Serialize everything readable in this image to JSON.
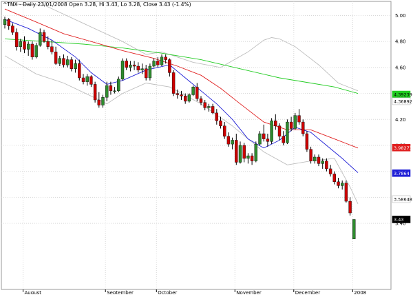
{
  "header": {
    "text": "^TNX - Daily 23/01/2008 Open 3.28, Hi 3.43, Lo 3.28, Close 3.43 (-1.4%)"
  },
  "chart_data": {
    "type": "candlestick",
    "title": "^TNX - Daily 23/01/2008 Open 3.28, Hi 3.43, Lo 3.28, Close 3.43 (-1.4%)",
    "ylim": [
      3.24,
      5.1
    ],
    "y_ticks": [
      "5.00",
      "4.80",
      "4.60",
      "4.40",
      "4.20",
      "4.00",
      "3.80",
      "3.60",
      "3.40"
    ],
    "x_ticks": [
      "August",
      "September",
      "October",
      "November",
      "December",
      "2008"
    ],
    "x_tick_index": [
      5,
      26,
      39,
      59,
      74,
      89
    ],
    "grid": true,
    "colors": {
      "up": "#2e8b2e",
      "down": "#cc0000",
      "ma_fast": "#1f1fd6",
      "ma_mid": "#e02020",
      "ma_slow": "#22cc22",
      "bollinger": "#bdbdbd"
    },
    "ohlc": [
      [
        4.93,
        4.99,
        4.9,
        4.97
      ],
      [
        4.97,
        4.98,
        4.89,
        4.92
      ],
      [
        4.92,
        4.94,
        4.85,
        4.87
      ],
      [
        4.87,
        4.9,
        4.73,
        4.76
      ],
      [
        4.76,
        4.82,
        4.72,
        4.8
      ],
      [
        4.8,
        4.84,
        4.71,
        4.74
      ],
      [
        4.74,
        4.8,
        4.69,
        4.78
      ],
      [
        4.78,
        4.8,
        4.66,
        4.68
      ],
      [
        4.68,
        4.79,
        4.67,
        4.77
      ],
      [
        4.77,
        4.9,
        4.76,
        4.87
      ],
      [
        4.87,
        4.89,
        4.79,
        4.8
      ],
      [
        4.8,
        4.84,
        4.74,
        4.76
      ],
      [
        4.76,
        4.81,
        4.7,
        4.72
      ],
      [
        4.72,
        4.76,
        4.62,
        4.63
      ],
      [
        4.63,
        4.69,
        4.61,
        4.67
      ],
      [
        4.67,
        4.7,
        4.6,
        4.62
      ],
      [
        4.62,
        4.69,
        4.6,
        4.66
      ],
      [
        4.66,
        4.68,
        4.57,
        4.59
      ],
      [
        4.59,
        4.66,
        4.56,
        4.63
      ],
      [
        4.63,
        4.66,
        4.5,
        4.52
      ],
      [
        4.52,
        4.55,
        4.47,
        4.49
      ],
      [
        4.49,
        4.55,
        4.46,
        4.53
      ],
      [
        4.53,
        4.54,
        4.45,
        4.47
      ],
      [
        4.47,
        4.49,
        4.33,
        4.35
      ],
      [
        4.35,
        4.41,
        4.29,
        4.31
      ],
      [
        4.31,
        4.39,
        4.29,
        4.37
      ],
      [
        4.37,
        4.49,
        4.34,
        4.46
      ],
      [
        4.46,
        4.49,
        4.39,
        4.42
      ],
      [
        4.42,
        4.45,
        4.4,
        4.42
      ],
      [
        4.42,
        4.53,
        4.41,
        4.51
      ],
      [
        4.51,
        4.67,
        4.5,
        4.65
      ],
      [
        4.65,
        4.67,
        4.58,
        4.6
      ],
      [
        4.6,
        4.65,
        4.57,
        4.62
      ],
      [
        4.62,
        4.65,
        4.58,
        4.61
      ],
      [
        4.61,
        4.64,
        4.56,
        4.58
      ],
      [
        4.58,
        4.63,
        4.55,
        4.59
      ],
      [
        4.59,
        4.62,
        4.5,
        4.52
      ],
      [
        4.52,
        4.63,
        4.5,
        4.61
      ],
      [
        4.61,
        4.67,
        4.6,
        4.65
      ],
      [
        4.65,
        4.68,
        4.6,
        4.62
      ],
      [
        4.62,
        4.7,
        4.61,
        4.68
      ],
      [
        4.68,
        4.7,
        4.63,
        4.66
      ],
      [
        4.66,
        4.67,
        4.53,
        4.56
      ],
      [
        4.56,
        4.58,
        4.38,
        4.4
      ],
      [
        4.4,
        4.43,
        4.36,
        4.39
      ],
      [
        4.39,
        4.42,
        4.35,
        4.38
      ],
      [
        4.38,
        4.4,
        4.32,
        4.34
      ],
      [
        4.34,
        4.4,
        4.33,
        4.39
      ],
      [
        4.39,
        4.46,
        4.38,
        4.45
      ],
      [
        4.45,
        4.48,
        4.34,
        4.36
      ],
      [
        4.36,
        4.38,
        4.31,
        4.33
      ],
      [
        4.33,
        4.35,
        4.27,
        4.29
      ],
      [
        4.29,
        4.32,
        4.26,
        4.3
      ],
      [
        4.3,
        4.32,
        4.24,
        4.25
      ],
      [
        4.25,
        4.28,
        4.16,
        4.19
      ],
      [
        4.19,
        4.22,
        4.13,
        4.15
      ],
      [
        4.15,
        4.18,
        4.05,
        4.07
      ],
      [
        4.07,
        4.1,
        3.99,
        4.01
      ],
      [
        4.01,
        4.06,
        3.97,
        4.04
      ],
      [
        4.04,
        4.09,
        3.85,
        3.87
      ],
      [
        3.87,
        4.03,
        3.86,
        4.0
      ],
      [
        4.0,
        4.02,
        3.87,
        3.9
      ],
      [
        3.9,
        3.94,
        3.86,
        3.92
      ],
      [
        3.92,
        3.94,
        3.85,
        3.88
      ],
      [
        3.88,
        4.03,
        3.87,
        4.01
      ],
      [
        4.01,
        4.11,
        4.0,
        4.09
      ],
      [
        4.09,
        4.16,
        4.03,
        4.05
      ],
      [
        4.05,
        4.09,
        3.99,
        4.03
      ],
      [
        4.03,
        4.21,
        4.01,
        4.19
      ],
      [
        4.19,
        4.24,
        4.12,
        4.15
      ],
      [
        4.15,
        4.17,
        4.04,
        4.07
      ],
      [
        4.07,
        4.11,
        4.0,
        4.02
      ],
      [
        4.02,
        4.2,
        4.01,
        4.18
      ],
      [
        4.18,
        4.22,
        4.11,
        4.13
      ],
      [
        4.13,
        4.25,
        4.12,
        4.23
      ],
      [
        4.23,
        4.28,
        4.16,
        4.18
      ],
      [
        4.18,
        4.2,
        4.07,
        4.09
      ],
      [
        4.09,
        4.11,
        3.95,
        3.97
      ],
      [
        3.97,
        3.99,
        3.86,
        3.88
      ],
      [
        3.88,
        3.93,
        3.86,
        3.91
      ],
      [
        3.91,
        3.93,
        3.84,
        3.86
      ],
      [
        3.86,
        3.9,
        3.82,
        3.88
      ],
      [
        3.88,
        3.9,
        3.8,
        3.82
      ],
      [
        3.82,
        3.85,
        3.76,
        3.78
      ],
      [
        3.78,
        3.8,
        3.7,
        3.72
      ],
      [
        3.72,
        3.75,
        3.67,
        3.69
      ],
      [
        3.69,
        3.73,
        3.66,
        3.71
      ],
      [
        3.71,
        3.73,
        3.56,
        3.57
      ],
      [
        3.57,
        3.6,
        3.46,
        3.48
      ],
      [
        3.28,
        3.43,
        3.28,
        3.43
      ]
    ],
    "bollinger_upper": [
      [
        0,
        5.09
      ],
      [
        10,
        5.08
      ],
      [
        20,
        4.94
      ],
      [
        30,
        4.8
      ],
      [
        36,
        4.7
      ],
      [
        40,
        4.72
      ],
      [
        48,
        4.64
      ],
      [
        55,
        4.6
      ],
      [
        62,
        4.72
      ],
      [
        66,
        4.81
      ],
      [
        68,
        4.83
      ],
      [
        70,
        4.82
      ],
      [
        74,
        4.76
      ],
      [
        80,
        4.62
      ],
      [
        85,
        4.48
      ],
      [
        90,
        4.42
      ]
    ],
    "bollinger_lower": [
      [
        0,
        4.69
      ],
      [
        8,
        4.55
      ],
      [
        15,
        4.48
      ],
      [
        22,
        4.38
      ],
      [
        26,
        4.32
      ],
      [
        30,
        4.4
      ],
      [
        36,
        4.48
      ],
      [
        42,
        4.45
      ],
      [
        50,
        4.32
      ],
      [
        58,
        4.15
      ],
      [
        66,
        3.95
      ],
      [
        72,
        3.85
      ],
      [
        78,
        3.88
      ],
      [
        84,
        3.9
      ],
      [
        88,
        3.68
      ],
      [
        90,
        3.55
      ]
    ],
    "ma_fast": [
      [
        0,
        4.97
      ],
      [
        6,
        4.9
      ],
      [
        12,
        4.81
      ],
      [
        18,
        4.68
      ],
      [
        22,
        4.56
      ],
      [
        26,
        4.47
      ],
      [
        30,
        4.5
      ],
      [
        36,
        4.58
      ],
      [
        42,
        4.62
      ],
      [
        46,
        4.52
      ],
      [
        50,
        4.42
      ],
      [
        54,
        4.32
      ],
      [
        58,
        4.2
      ],
      [
        62,
        4.05
      ],
      [
        66,
        3.98
      ],
      [
        70,
        4.04
      ],
      [
        74,
        4.14
      ],
      [
        78,
        4.1
      ],
      [
        82,
        4.0
      ],
      [
        86,
        3.9
      ],
      [
        90,
        3.79
      ]
    ],
    "ma_mid": [
      [
        0,
        5.05
      ],
      [
        8,
        4.95
      ],
      [
        15,
        4.86
      ],
      [
        22,
        4.8
      ],
      [
        30,
        4.73
      ],
      [
        38,
        4.67
      ],
      [
        44,
        4.61
      ],
      [
        50,
        4.54
      ],
      [
        55,
        4.44
      ],
      [
        60,
        4.32
      ],
      [
        66,
        4.18
      ],
      [
        72,
        4.12
      ],
      [
        78,
        4.12
      ],
      [
        84,
        4.05
      ],
      [
        90,
        3.98
      ]
    ],
    "ma_slow": [
      [
        0,
        4.82
      ],
      [
        10,
        4.8
      ],
      [
        20,
        4.78
      ],
      [
        30,
        4.75
      ],
      [
        40,
        4.71
      ],
      [
        50,
        4.66
      ],
      [
        60,
        4.59
      ],
      [
        70,
        4.52
      ],
      [
        78,
        4.48
      ],
      [
        84,
        4.45
      ],
      [
        90,
        4.4
      ]
    ],
    "value_boxes": [
      {
        "label": "4.39239",
        "value": 4.39239,
        "bg": "#22cc22",
        "fg": "#000000"
      },
      {
        "label": "4.36892",
        "value": 4.34,
        "bg": "#ffffff",
        "fg": "#000000"
      },
      {
        "label": "3.98273",
        "value": 3.98273,
        "bg": "#e02020",
        "fg": "#ffffff"
      },
      {
        "label": "3.7864",
        "value": 3.7864,
        "bg": "#1f1fd6",
        "fg": "#ffffff"
      },
      {
        "label": "3.58648",
        "value": 3.58648,
        "bg": "#ffffff",
        "fg": "#000000"
      },
      {
        "label": "3.43",
        "value": 3.43,
        "bg": "#000000",
        "fg": "#ffffff"
      }
    ]
  }
}
